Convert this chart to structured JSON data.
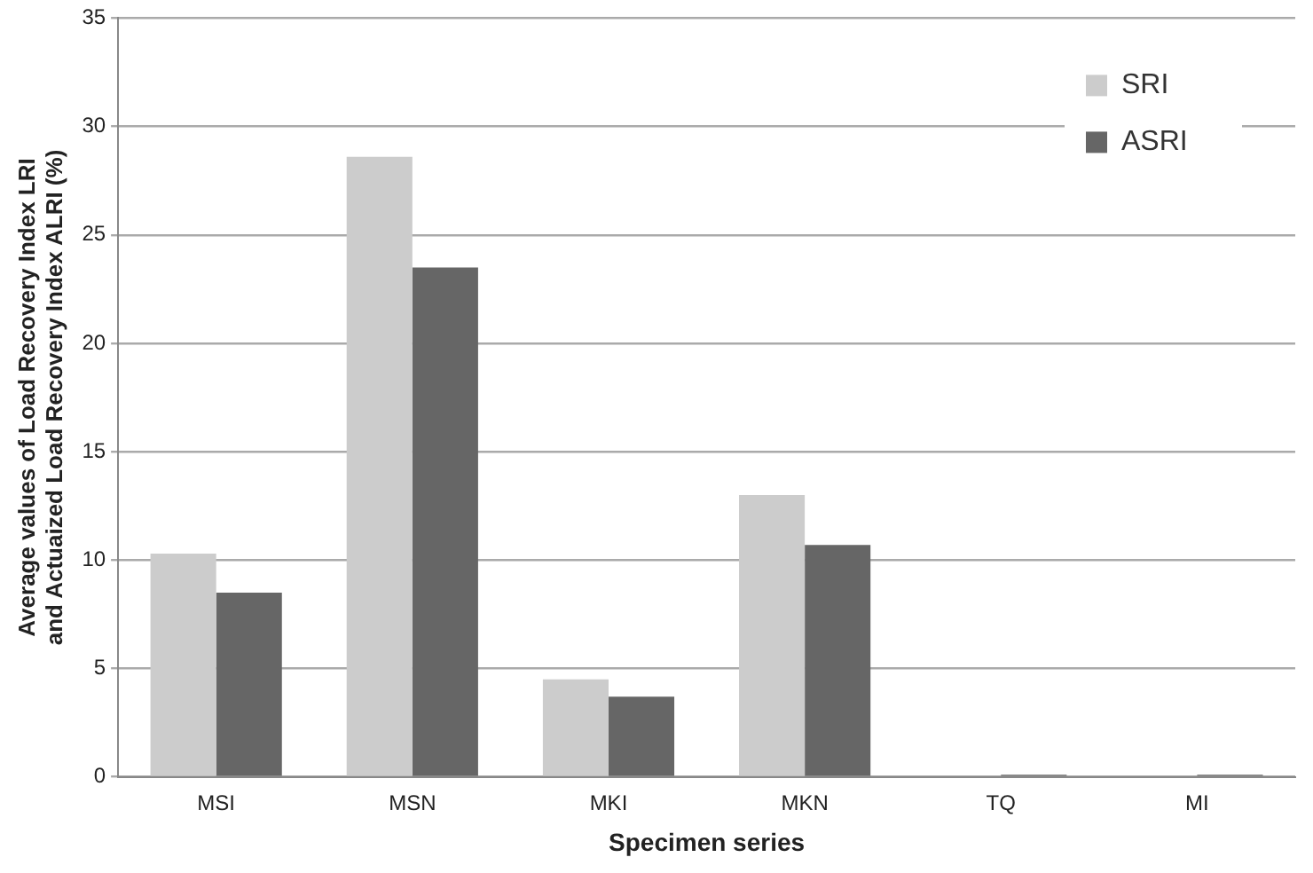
{
  "chart_data": {
    "type": "bar",
    "xlabel": "Specimen series",
    "ylabel": "Average values of Load Recovery Index LRI and Actuaized Load Recovery Index ALRI (%)",
    "categories": [
      "MSI",
      "MSN",
      "MKI",
      "MKN",
      "TQ",
      "MI"
    ],
    "series": [
      {
        "name": "SRI",
        "color": "#cccccc",
        "values": [
          10.3,
          28.6,
          4.5,
          13.0,
          0,
          0
        ]
      },
      {
        "name": "ASRI",
        "color": "#666666",
        "values": [
          8.5,
          23.5,
          3.7,
          10.7,
          0.1,
          0.1
        ]
      }
    ],
    "ylim": [
      0,
      35
    ],
    "yticks": [
      0,
      5,
      10,
      15,
      20,
      25,
      30,
      35
    ],
    "grid": "y",
    "legend": "top right"
  }
}
